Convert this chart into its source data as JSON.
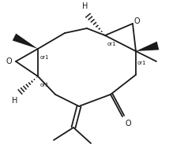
{
  "background": "#ffffff",
  "line_color": "#1a1a1a",
  "line_width": 1.3,
  "fig_width": 2.14,
  "fig_height": 2.02,
  "dpi": 100,
  "xlim": [
    0,
    214
  ],
  "ylim": [
    0,
    202
  ]
}
